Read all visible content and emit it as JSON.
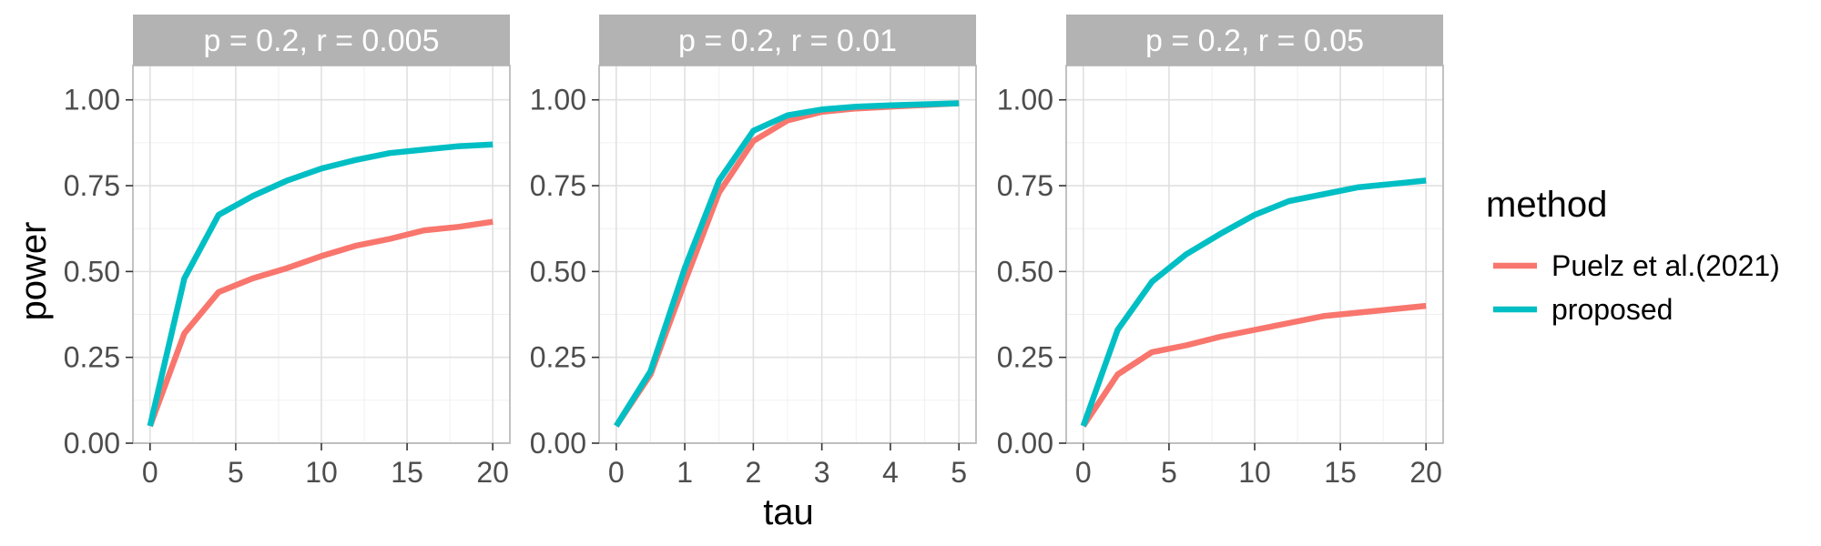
{
  "chart_data": {
    "type": "line",
    "xlabel": "tau",
    "ylabel": "power",
    "ylim": [
      0,
      1.1
    ],
    "yticks": [
      0.0,
      0.25,
      0.5,
      0.75,
      1.0
    ],
    "ytick_labels": [
      "0.00",
      "0.25",
      "0.50",
      "0.75",
      "1.00"
    ],
    "grid": true,
    "legend": {
      "title": "method",
      "placement": "right",
      "entries": [
        {
          "label": "Puelz et al.(2021)",
          "color": "#F8766D"
        },
        {
          "label": "proposed",
          "color": "#00BFC4"
        }
      ]
    },
    "panels": [
      {
        "title": "p = 0.2,   r = 0.005",
        "xlim": [
          -1,
          21
        ],
        "xticks": [
          0,
          5,
          10,
          15,
          20
        ],
        "xtick_labels": [
          "0",
          "5",
          "10",
          "15",
          "20"
        ],
        "series": [
          {
            "name": "Puelz et al.(2021)",
            "x": [
              0,
              2,
              4,
              6,
              8,
              10,
              12,
              14,
              16,
              18,
              20
            ],
            "y": [
              0.05,
              0.32,
              0.44,
              0.48,
              0.51,
              0.545,
              0.575,
              0.595,
              0.62,
              0.63,
              0.645
            ]
          },
          {
            "name": "proposed",
            "x": [
              0,
              2,
              4,
              6,
              8,
              10,
              12,
              14,
              16,
              18,
              20
            ],
            "y": [
              0.05,
              0.48,
              0.665,
              0.72,
              0.765,
              0.8,
              0.825,
              0.845,
              0.855,
              0.865,
              0.87
            ]
          }
        ]
      },
      {
        "title": "p = 0.2,   r = 0.01",
        "xlim": [
          -0.25,
          5.25
        ],
        "xticks": [
          0,
          1,
          2,
          3,
          4,
          5
        ],
        "xtick_labels": [
          "0",
          "1",
          "2",
          "3",
          "4",
          "5"
        ],
        "series": [
          {
            "name": "Puelz et al.(2021)",
            "x": [
              0,
              0.5,
              1,
              1.5,
              2,
              2.5,
              3,
              3.5,
              4,
              4.5,
              5
            ],
            "y": [
              0.05,
              0.2,
              0.47,
              0.73,
              0.88,
              0.94,
              0.965,
              0.975,
              0.98,
              0.985,
              0.99
            ]
          },
          {
            "name": "proposed",
            "x": [
              0,
              0.5,
              1,
              1.5,
              2,
              2.5,
              3,
              3.5,
              4,
              4.5,
              5
            ],
            "y": [
              0.05,
              0.21,
              0.51,
              0.765,
              0.91,
              0.955,
              0.972,
              0.98,
              0.984,
              0.987,
              0.99
            ]
          }
        ]
      },
      {
        "title": "p = 0.2,   r = 0.05",
        "xlim": [
          -1,
          21
        ],
        "xticks": [
          0,
          5,
          10,
          15,
          20
        ],
        "xtick_labels": [
          "0",
          "5",
          "10",
          "15",
          "20"
        ],
        "series": [
          {
            "name": "Puelz et al.(2021)",
            "x": [
              0,
              2,
              4,
              6,
              8,
              10,
              12,
              14,
              16,
              18,
              20
            ],
            "y": [
              0.05,
              0.2,
              0.265,
              0.285,
              0.31,
              0.33,
              0.35,
              0.37,
              0.38,
              0.39,
              0.4
            ]
          },
          {
            "name": "proposed",
            "x": [
              0,
              2,
              4,
              6,
              8,
              10,
              12,
              14,
              16,
              18,
              20
            ],
            "y": [
              0.05,
              0.33,
              0.47,
              0.55,
              0.61,
              0.665,
              0.705,
              0.725,
              0.745,
              0.755,
              0.765
            ]
          }
        ]
      }
    ]
  }
}
